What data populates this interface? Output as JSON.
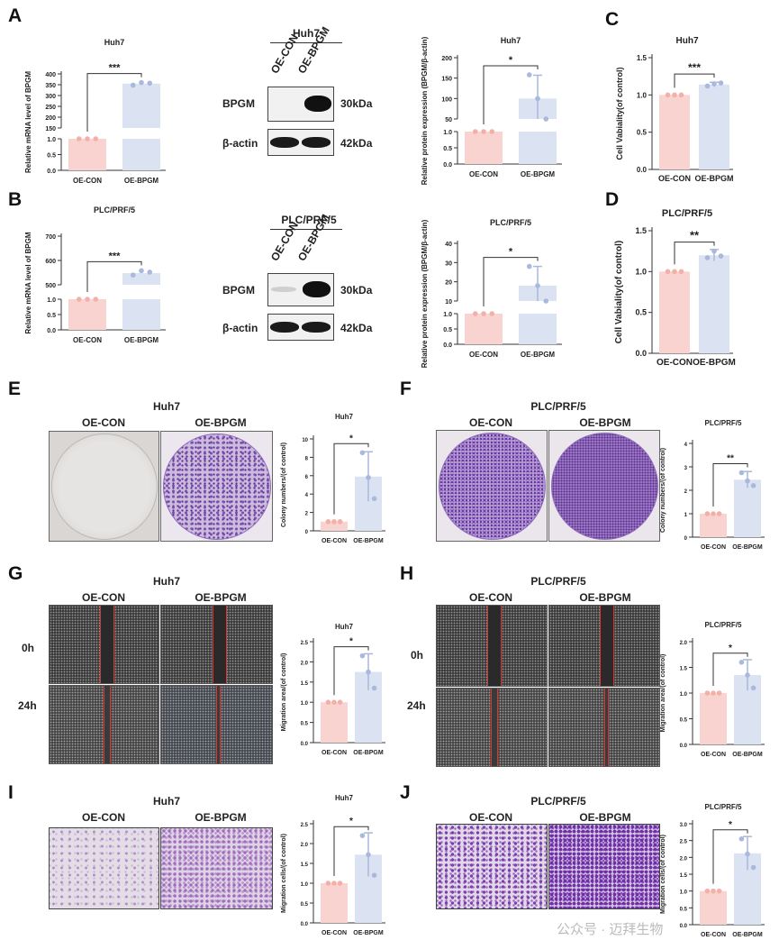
{
  "panels": {
    "A": {
      "letter": "A",
      "qpcr": {
        "title": "Huh7",
        "ylabel": "Relative mRNA level of BPGM",
        "cat": [
          "OE-CON",
          "OE-BPGM"
        ],
        "sig": "***",
        "upper_ticks": [
          "400",
          "350",
          "300",
          "250",
          "200",
          "150"
        ],
        "lower_ticks": [
          "1.0",
          "0.5",
          "0.0"
        ]
      },
      "blot": {
        "cell": "Huh7",
        "lanes": [
          "OE-CON",
          "OE-BPGM"
        ],
        "rows": [
          "BPGM",
          "β-actin"
        ],
        "sizes": [
          "30kDa",
          "42kDa"
        ]
      },
      "wb": {
        "title": "Huh7",
        "ylabel": "Relative protein expression (BPGM/β-actin)",
        "cat": [
          "OE-CON",
          "OE-BPGM"
        ],
        "sig": "*",
        "upper_ticks": [
          "200",
          "150",
          "100",
          "50"
        ],
        "lower_ticks": [
          "1.0",
          "0.5",
          "0.0"
        ]
      }
    },
    "B": {
      "letter": "B",
      "qpcr": {
        "title": "PLC/PRF/5",
        "ylabel": "Relative mRNA level of BPGM",
        "cat": [
          "OE-CON",
          "OE-BPGM"
        ],
        "sig": "***",
        "upper_ticks": [
          "700",
          "600",
          "500"
        ],
        "lower_ticks": [
          "1.0",
          "0.5",
          "0.0"
        ]
      },
      "blot": {
        "cell": "PLC/PRF/5",
        "lanes": [
          "OE-CON",
          "OE-BPGM"
        ],
        "rows": [
          "BPGM",
          "β-actin"
        ],
        "sizes": [
          "30kDa",
          "42kDa"
        ]
      },
      "wb": {
        "title": "PLC/PRF/5",
        "ylabel": "Relative protein expression (BPGM/β-actin)",
        "cat": [
          "OE-CON",
          "OE-BPGM"
        ],
        "sig": "*",
        "upper_ticks": [
          "40",
          "30",
          "20",
          "10"
        ],
        "lower_ticks": [
          "1.0",
          "0.5",
          "0.0"
        ]
      }
    },
    "C": {
      "letter": "C",
      "title": "Huh7",
      "ylabel": "Cell Vabiality(of control)",
      "cat": [
        "OE-CON",
        "OE-BPGM"
      ],
      "sig": "***",
      "ticks": [
        "1.5",
        "1.0",
        "0.5",
        "0.0"
      ]
    },
    "D": {
      "letter": "D",
      "title": "PLC/PRF/5",
      "ylabel": "Cell Vabiality(of control)",
      "cat": [
        "OE-CON",
        "OE-BPGM"
      ],
      "sig": "**",
      "ticks": [
        "1.5",
        "1.0",
        "0.5",
        "0.0"
      ]
    },
    "E": {
      "letter": "E",
      "cell": "Huh7",
      "img": [
        "OE-CON",
        "OE-BPGM"
      ],
      "chart": {
        "title": "Huh7",
        "ylabel": "Colony numbers/(of control)",
        "cat": [
          "OE-CON",
          "OE-BPGM"
        ],
        "sig": "*",
        "ticks": [
          "10",
          "8",
          "6",
          "4",
          "2",
          "0"
        ]
      }
    },
    "F": {
      "letter": "F",
      "cell": "PLC/PRF/5",
      "img": [
        "OE-CON",
        "OE-BPGM"
      ],
      "chart": {
        "title": "PLC/PRF/5",
        "ylabel": "Colony numbers/(of control)",
        "cat": [
          "OE-CON",
          "OE-BPGM"
        ],
        "sig": "**",
        "ticks": [
          "4",
          "3",
          "2",
          "1",
          "0"
        ]
      }
    },
    "G": {
      "letter": "G",
      "cell": "Huh7",
      "img": [
        "OE-CON",
        "OE-BPGM"
      ],
      "rows": [
        "0h",
        "24h"
      ],
      "chart": {
        "title": "Huh7",
        "ylabel": "Migration area/(of control)",
        "cat": [
          "OE-CON",
          "OE-BPGM"
        ],
        "sig": "*",
        "ticks": [
          "2.5",
          "2.0",
          "1.5",
          "1.0",
          "0.5",
          "0.0"
        ]
      }
    },
    "H": {
      "letter": "H",
      "cell": "PLC/PRF/5",
      "img": [
        "OE-CON",
        "OE-BPGM"
      ],
      "rows": [
        "0h",
        "24h"
      ],
      "chart": {
        "title": "PLC/PRF/5",
        "ylabel": "Migration area/(of control)",
        "cat": [
          "OE-CON",
          "OE-BPGM"
        ],
        "sig": "*",
        "ticks": [
          "2.0",
          "1.5",
          "1.0",
          "0.5",
          "0.0"
        ]
      }
    },
    "I": {
      "letter": "I",
      "cell": "Huh7",
      "img": [
        "OE-CON",
        "OE-BPGM"
      ],
      "chart": {
        "title": "Huh7",
        "ylabel": "Migration cells/(of control)",
        "cat": [
          "OE-CON",
          "OE-BPGM"
        ],
        "sig": "*",
        "ticks": [
          "2.5",
          "2.0",
          "1.5",
          "1.0",
          "0.5",
          "0.0"
        ]
      }
    },
    "J": {
      "letter": "J",
      "cell": "PLC/PRF/5",
      "img": [
        "OE-CON",
        "OE-BPGM"
      ],
      "chart": {
        "title": "PLC/PRF/5",
        "ylabel": "Migration cells/(of control)",
        "cat": [
          "OE-CON",
          "OE-BPGM"
        ],
        "sig": "*",
        "ticks": [
          "3.0",
          "2.5",
          "2.0",
          "1.5",
          "1.0",
          "0.5",
          "0.0"
        ]
      }
    }
  },
  "watermark": "公众号 · 迈拜生物",
  "colors": {
    "con": "#f9d3cf",
    "con_dot": "#f3b0a8",
    "oe": "#dbe2f1",
    "oe_dot": "#a9b8dc",
    "stain": "#6a3aa0",
    "scratch": "#d9362f"
  },
  "chart_data": [
    {
      "id": "A-qpcr",
      "type": "bar",
      "categories": [
        "OE-CON",
        "OE-BPGM"
      ],
      "values": [
        1,
        355
      ],
      "points": [
        [
          1,
          1,
          1
        ],
        [
          348,
          360,
          357
        ]
      ],
      "title": "Huh7",
      "ylabel": "Relative mRNA level of BPGM",
      "broken_axis": [
        1.0,
        150
      ]
    },
    {
      "id": "A-wb",
      "type": "bar",
      "categories": [
        "OE-CON",
        "OE-BPGM"
      ],
      "values": [
        1,
        100
      ],
      "error": [
        0,
        57
      ],
      "points": [
        [
          1,
          1,
          1
        ],
        [
          158,
          100,
          42
        ]
      ],
      "title": "Huh7",
      "ylabel": "Relative protein expression (BPGM/β-actin)",
      "broken_axis": [
        1.0,
        50
      ]
    },
    {
      "id": "B-qpcr",
      "type": "bar",
      "categories": [
        "OE-CON",
        "OE-BPGM"
      ],
      "values": [
        1,
        548
      ],
      "points": [
        [
          1,
          1,
          1
        ],
        [
          540,
          558,
          552
        ]
      ],
      "title": "PLC/PRF/5",
      "ylabel": "Relative mRNA level of BPGM",
      "broken_axis": [
        1.0,
        500
      ]
    },
    {
      "id": "B-wb",
      "type": "bar",
      "categories": [
        "OE-CON",
        "OE-BPGM"
      ],
      "values": [
        1,
        18
      ],
      "error": [
        0,
        10
      ],
      "points": [
        [
          1,
          1,
          1
        ],
        [
          28,
          18,
          9
        ]
      ],
      "title": "PLC/PRF/5",
      "ylabel": "Relative protein expression (BPGM/β-actin)",
      "broken_axis": [
        1.0,
        10
      ]
    },
    {
      "id": "C",
      "type": "bar",
      "categories": [
        "OE-CON",
        "OE-BPGM"
      ],
      "values": [
        1.0,
        1.14
      ],
      "error": [
        0,
        0.03
      ],
      "points": [
        [
          1,
          1,
          1
        ],
        [
          1.12,
          1.15,
          1.16
        ]
      ],
      "ylim": [
        0,
        1.5
      ],
      "title": "Huh7",
      "ylabel": "Cell Vabiality(of control)"
    },
    {
      "id": "D",
      "type": "bar",
      "categories": [
        "OE-CON",
        "OE-BPGM"
      ],
      "values": [
        1.0,
        1.2
      ],
      "error": [
        0,
        0.07
      ],
      "points": [
        [
          1,
          1,
          1
        ],
        [
          1.17,
          1.25,
          1.19
        ]
      ],
      "ylim": [
        0,
        1.5
      ],
      "title": "PLC/PRF/5",
      "ylabel": "Cell Vabiality(of control)"
    },
    {
      "id": "E",
      "type": "bar",
      "categories": [
        "OE-CON",
        "OE-BPGM"
      ],
      "values": [
        1.0,
        5.9
      ],
      "error": [
        0,
        2.7
      ],
      "points": [
        [
          1,
          1,
          1
        ],
        [
          8.5,
          5.8,
          3.5
        ]
      ],
      "ylim": [
        0,
        10
      ],
      "title": "Huh7",
      "ylabel": "Colony numbers/(of control)"
    },
    {
      "id": "F",
      "type": "bar",
      "categories": [
        "OE-CON",
        "OE-BPGM"
      ],
      "values": [
        1.0,
        2.45
      ],
      "error": [
        0,
        0.35
      ],
      "points": [
        [
          1,
          1,
          1
        ],
        [
          2.75,
          2.4,
          2.2
        ]
      ],
      "ylim": [
        0,
        4
      ],
      "title": "PLC/PRF/5",
      "ylabel": "Colony numbers/(of control)"
    },
    {
      "id": "G",
      "type": "bar",
      "categories": [
        "OE-CON",
        "OE-BPGM"
      ],
      "values": [
        1.0,
        1.75
      ],
      "error": [
        0,
        0.45
      ],
      "points": [
        [
          1,
          1,
          1
        ],
        [
          2.15,
          1.75,
          1.35
        ]
      ],
      "ylim": [
        0,
        2.5
      ],
      "title": "Huh7",
      "ylabel": "Migration area/(of control)"
    },
    {
      "id": "H",
      "type": "bar",
      "categories": [
        "OE-CON",
        "OE-BPGM"
      ],
      "values": [
        1.0,
        1.35
      ],
      "error": [
        0,
        0.3
      ],
      "points": [
        [
          1,
          1,
          1
        ],
        [
          1.6,
          1.35,
          1.1
        ]
      ],
      "ylim": [
        0,
        2.0
      ],
      "title": "PLC/PRF/5",
      "ylabel": "Migration area/(of control)"
    },
    {
      "id": "I",
      "type": "bar",
      "categories": [
        "OE-CON",
        "OE-BPGM"
      ],
      "values": [
        1.0,
        1.72
      ],
      "error": [
        0,
        0.55
      ],
      "points": [
        [
          1,
          1,
          1
        ],
        [
          2.2,
          1.72,
          1.2
        ]
      ],
      "ylim": [
        0,
        2.5
      ],
      "title": "Huh7",
      "ylabel": "Migration cells/(of control)"
    },
    {
      "id": "J",
      "type": "bar",
      "categories": [
        "OE-CON",
        "OE-BPGM"
      ],
      "values": [
        1.0,
        2.12
      ],
      "error": [
        0,
        0.5
      ],
      "points": [
        [
          1,
          1,
          1
        ],
        [
          2.55,
          2.1,
          1.7
        ]
      ],
      "ylim": [
        0,
        3.0
      ],
      "title": "PLC/PRF/5",
      "ylabel": "Migration cells/(of control)"
    }
  ]
}
